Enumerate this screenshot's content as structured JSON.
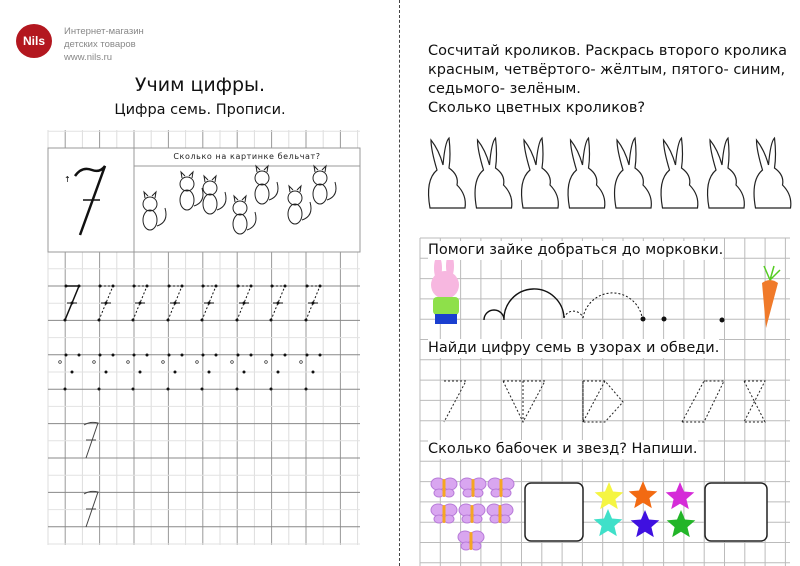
{
  "brand": {
    "logo_text": "Nils",
    "line1": "Интернет-магазин",
    "line2": "детских товаров",
    "line3": "www.nils.ru",
    "color": "#b3171f"
  },
  "left": {
    "title": "Учим цифры.",
    "subtitle": "Цифра семь. Прописи.",
    "question": "Сколько на картинке бельчат?",
    "digit": "7",
    "images": [
      "squirrels-illustration"
    ]
  },
  "right": {
    "task1": {
      "line1": "Сосчитай кроликов. Раскрась второго кролика",
      "line2": "красным, четвёртого- жёлтым, пятого- синим,",
      "line3": "седьмого- зелёным.",
      "line4": "Сколько цветных кроликов?",
      "rabbit_count": 8
    },
    "task2": "Помоги зайке добраться до морковки.",
    "task3": "Найди цифру семь в узорах и обведи.",
    "task4": "Сколько бабочек и звезд? Напиши.",
    "butterfly_count": 7,
    "star_colors": [
      "#f5f542",
      "#f26a12",
      "#d52bd8",
      "#3fe0c9",
      "#3f10e0",
      "#22b528"
    ]
  }
}
